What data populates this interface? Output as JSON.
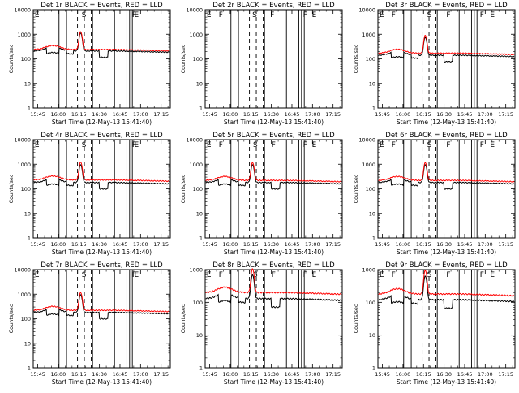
{
  "figure": {
    "title_template": "Det {n}r BLACK = Events, RED = LLD",
    "xlabel": "Start Time (12-May-13 15:41:40)",
    "ylabel": "Counts/sec",
    "series_colors": {
      "events": "#000000",
      "lld": "#ff0000"
    }
  },
  "chart_data": [
    {
      "detector": 1,
      "type": "line",
      "title": "Det 1r BLACK = Events, RED = LLD",
      "xlabel": "Start Time (12-May-13 15:41:40)",
      "ylabel": "Counts/sec",
      "x_tick_labels": [
        "15:45",
        "16:00",
        "16:15",
        "16:30",
        "16:45",
        "17:00",
        "17:15"
      ],
      "x_tick_minutes": [
        45,
        60,
        75,
        90,
        105,
        120,
        135
      ],
      "xlim_minutes": [
        41.7,
        141.7
      ],
      "y_tick_labels": [
        "1",
        "10",
        "100",
        "1000",
        "10000"
      ],
      "ylim": [
        1,
        10000
      ],
      "yscale": "log",
      "region_labels": [
        {
          "text": "E",
          "minute": 42.2
        },
        {
          "text": "S",
          "minute": 76.5
        },
        {
          "text": "F",
          "minute": 113.2
        },
        {
          "text": "E",
          "minute": 114.8
        }
      ],
      "solid_lines_minutes": [
        60.5,
        66.0,
        85.0,
        101.0,
        110.0,
        112.0,
        114.0
      ],
      "dashed_lines_minutes": [
        74.0,
        79.0,
        84.0
      ],
      "series": [
        {
          "name": "Events",
          "color": "#000000",
          "events_level": 210
        },
        {
          "name": "LLD",
          "color": "#ff0000",
          "lld_level": 240
        }
      ]
    },
    {
      "detector": 2,
      "type": "line",
      "title": "Det 2r BLACK = Events, RED = LLD",
      "xlabel": "Start Time (12-May-13 15:41:40)",
      "ylabel": "Counts/sec",
      "x_tick_labels": [
        "15:45",
        "16:00",
        "16:15",
        "16:30",
        "16:45",
        "17:00",
        "17:15"
      ],
      "x_tick_minutes": [
        45,
        60,
        75,
        90,
        105,
        120,
        135
      ],
      "xlim_minutes": [
        41.7,
        141.7
      ],
      "y_tick_labels": [
        "1",
        "10",
        "100",
        "1000",
        "10000"
      ],
      "ylim": [
        1,
        10000
      ],
      "yscale": "log",
      "region_labels": [
        {
          "text": "E",
          "minute": 42.2
        },
        {
          "text": "F",
          "minute": 51.0
        },
        {
          "text": "S",
          "minute": 75.5
        },
        {
          "text": "F",
          "minute": 88.5
        },
        {
          "text": "F",
          "minute": 112.5
        },
        {
          "text": "E",
          "minute": 119.0
        }
      ],
      "solid_lines_minutes": [
        60.5,
        66.0,
        85.0,
        101.0,
        110.0,
        112.0,
        114.0
      ],
      "dashed_lines_minutes": [
        74.0,
        79.0,
        84.0
      ],
      "series": [
        {
          "name": "Events",
          "color": "#000000",
          "events_level": null
        },
        {
          "name": "LLD",
          "color": "#ff0000",
          "lld_level": null
        }
      ]
    },
    {
      "detector": 3,
      "type": "line",
      "title": "Det 3r BLACK = Events, RED = LLD",
      "xlabel": "Start Time (12-May-13 15:41:40)",
      "ylabel": "Counts/sec",
      "x_tick_labels": [
        "15:45",
        "16:00",
        "16:15",
        "16:30",
        "16:45",
        "17:00",
        "17:15"
      ],
      "x_tick_minutes": [
        45,
        60,
        75,
        90,
        105,
        120,
        135
      ],
      "xlim_minutes": [
        41.7,
        141.7
      ],
      "y_tick_labels": [
        "1",
        "10",
        "100",
        "1000",
        "10000"
      ],
      "ylim": [
        1,
        10000
      ],
      "yscale": "log",
      "region_labels": [
        {
          "text": "E",
          "minute": 42.2
        },
        {
          "text": "F",
          "minute": 51.0
        },
        {
          "text": "S",
          "minute": 77.0
        },
        {
          "text": "F",
          "minute": 91.0
        },
        {
          "text": "F",
          "minute": 115.5
        },
        {
          "text": "E",
          "minute": 123.0
        }
      ],
      "solid_lines_minutes": [
        60.5,
        66.0,
        85.0,
        101.0,
        110.0,
        112.0,
        114.0
      ],
      "dashed_lines_minutes": [
        74.0,
        79.0,
        84.0
      ],
      "series": [
        {
          "name": "Events",
          "color": "#000000",
          "events_level": 140
        },
        {
          "name": "LLD",
          "color": "#ff0000",
          "lld_level": 170
        }
      ]
    },
    {
      "detector": 4,
      "type": "line",
      "title": "Det 4r BLACK = Events, RED = LLD",
      "xlabel": "Start Time (12-May-13 15:41:40)",
      "ylabel": "Counts/sec",
      "x_tick_labels": [
        "15:45",
        "16:00",
        "16:15",
        "16:30",
        "16:45",
        "17:00",
        "17:15"
      ],
      "x_tick_minutes": [
        45,
        60,
        75,
        90,
        105,
        120,
        135
      ],
      "xlim_minutes": [
        41.7,
        141.7
      ],
      "y_tick_labels": [
        "1",
        "10",
        "100",
        "1000",
        "10000"
      ],
      "ylim": [
        1,
        10000
      ],
      "yscale": "log",
      "region_labels": [
        {
          "text": "E",
          "minute": 42.2
        },
        {
          "text": "S",
          "minute": 76.5
        },
        {
          "text": "F",
          "minute": 113.2
        },
        {
          "text": "E",
          "minute": 114.8
        }
      ],
      "solid_lines_minutes": [
        60.5,
        66.0,
        85.0,
        101.0,
        110.0,
        112.0,
        114.0
      ],
      "dashed_lines_minutes": [
        74.0,
        79.0,
        84.0
      ],
      "series": [
        {
          "name": "Events",
          "color": "#000000",
          "events_level": 180
        },
        {
          "name": "LLD",
          "color": "#ff0000",
          "lld_level": 230
        }
      ]
    },
    {
      "detector": 5,
      "type": "line",
      "title": "Det 5r BLACK = Events, RED = LLD",
      "xlabel": "Start Time (12-May-13 15:41:40)",
      "ylabel": "Counts/sec",
      "x_tick_labels": [
        "15:45",
        "16:00",
        "16:15",
        "16:30",
        "16:45",
        "17:00",
        "17:15"
      ],
      "x_tick_minutes": [
        45,
        60,
        75,
        90,
        105,
        120,
        135
      ],
      "xlim_minutes": [
        41.7,
        141.7
      ],
      "y_tick_labels": [
        "1",
        "10",
        "100",
        "1000",
        "10000"
      ],
      "ylim": [
        1,
        10000
      ],
      "yscale": "log",
      "region_labels": [
        {
          "text": "E",
          "minute": 42.2
        },
        {
          "text": "F",
          "minute": 51.0
        },
        {
          "text": "S",
          "minute": 76.0
        },
        {
          "text": "F",
          "minute": 89.5
        },
        {
          "text": "F",
          "minute": 112.5
        },
        {
          "text": "E",
          "minute": 119.0
        }
      ],
      "solid_lines_minutes": [
        60.5,
        66.0,
        85.0,
        101.0,
        110.0,
        112.0,
        114.0
      ],
      "dashed_lines_minutes": [
        74.0,
        79.0,
        84.0
      ],
      "series": [
        {
          "name": "Events",
          "color": "#000000",
          "events_level": 180
        },
        {
          "name": "LLD",
          "color": "#ff0000",
          "lld_level": 220
        }
      ]
    },
    {
      "detector": 6,
      "type": "line",
      "title": "Det 6r BLACK = Events, RED = LLD",
      "xlabel": "Start Time (12-May-13 15:41:40)",
      "ylabel": "Counts/sec",
      "x_tick_labels": [
        "15:45",
        "16:00",
        "16:15",
        "16:30",
        "16:45",
        "17:00",
        "17:15"
      ],
      "x_tick_minutes": [
        45,
        60,
        75,
        90,
        105,
        120,
        135
      ],
      "xlim_minutes": [
        41.7,
        141.7
      ],
      "y_tick_labels": [
        "1",
        "10",
        "100",
        "1000",
        "10000"
      ],
      "ylim": [
        1,
        10000
      ],
      "yscale": "log",
      "region_labels": [
        {
          "text": "E",
          "minute": 42.2
        },
        {
          "text": "F",
          "minute": 51.0
        },
        {
          "text": "S",
          "minute": 77.0
        },
        {
          "text": "F",
          "minute": 91.0
        },
        {
          "text": "F",
          "minute": 115.5
        },
        {
          "text": "E",
          "minute": 123.0
        }
      ],
      "solid_lines_minutes": [
        60.5,
        66.0,
        85.0,
        101.0,
        110.0,
        112.0,
        114.0
      ],
      "dashed_lines_minutes": [
        74.0,
        79.0,
        84.0
      ],
      "series": [
        {
          "name": "Events",
          "color": "#000000",
          "events_level": 180
        },
        {
          "name": "LLD",
          "color": "#ff0000",
          "lld_level": 220
        }
      ]
    },
    {
      "detector": 7,
      "type": "line",
      "title": "Det 7r BLACK = Events, RED = LLD",
      "xlabel": "Start Time (12-May-13 15:41:40)",
      "ylabel": "Counts/sec",
      "x_tick_labels": [
        "15:45",
        "16:00",
        "16:15",
        "16:30",
        "16:45",
        "17:00",
        "17:15"
      ],
      "x_tick_minutes": [
        45,
        60,
        75,
        90,
        105,
        120,
        135
      ],
      "xlim_minutes": [
        41.7,
        141.7
      ],
      "y_tick_labels": [
        "1",
        "10",
        "100",
        "1000",
        "10000"
      ],
      "ylim": [
        1,
        10000
      ],
      "yscale": "log",
      "region_labels": [
        {
          "text": "E",
          "minute": 42.2
        },
        {
          "text": "S",
          "minute": 76.5
        },
        {
          "text": "F",
          "minute": 113.2
        },
        {
          "text": "E",
          "minute": 114.8
        }
      ],
      "solid_lines_minutes": [
        60.5,
        66.0,
        85.0,
        101.0,
        110.0,
        112.0,
        114.0
      ],
      "dashed_lines_minutes": [
        74.0,
        79.0,
        84.0
      ],
      "series": [
        {
          "name": "Events",
          "color": "#000000",
          "events_level": 180
        },
        {
          "name": "LLD",
          "color": "#ff0000",
          "lld_level": 220
        }
      ]
    },
    {
      "detector": 8,
      "type": "line",
      "title": "Det 8r BLACK = Events, RED = LLD",
      "xlabel": "Start Time (12-May-13 15:41:40)",
      "ylabel": "Counts/sec",
      "x_tick_labels": [
        "15:45",
        "16:00",
        "16:15",
        "16:30",
        "16:45",
        "17:00",
        "17:15"
      ],
      "x_tick_minutes": [
        45,
        60,
        75,
        90,
        105,
        120,
        135
      ],
      "xlim_minutes": [
        41.7,
        141.7
      ],
      "y_tick_labels": [
        "1",
        "10",
        "100",
        "1000"
      ],
      "ylim": [
        1,
        1000
      ],
      "yscale": "log",
      "region_labels": [
        {
          "text": "E",
          "minute": 42.2
        },
        {
          "text": "F",
          "minute": 51.0
        },
        {
          "text": "S",
          "minute": 76.0
        },
        {
          "text": "F",
          "minute": 89.5
        },
        {
          "text": "F",
          "minute": 112.5
        },
        {
          "text": "E",
          "minute": 119.0
        }
      ],
      "solid_lines_minutes": [
        60.5,
        66.0,
        85.0,
        101.0,
        110.0,
        112.0,
        114.0
      ],
      "dashed_lines_minutes": [
        74.0,
        79.0,
        84.0
      ],
      "series": [
        {
          "name": "Events",
          "color": "#000000",
          "events_level": 130
        },
        {
          "name": "LLD",
          "color": "#ff0000",
          "lld_level": 200
        }
      ]
    },
    {
      "detector": 9,
      "type": "line",
      "title": "Det 9r BLACK = Events, RED = LLD",
      "xlabel": "Start Time (12-May-13 15:41:40)",
      "ylabel": "Counts/sec",
      "x_tick_labels": [
        "15:45",
        "16:00",
        "16:15",
        "16:30",
        "16:45",
        "17:00",
        "17:15"
      ],
      "x_tick_minutes": [
        45,
        60,
        75,
        90,
        105,
        120,
        135
      ],
      "xlim_minutes": [
        41.7,
        141.7
      ],
      "y_tick_labels": [
        "1",
        "10",
        "100",
        "1000"
      ],
      "ylim": [
        1,
        1000
      ],
      "yscale": "log",
      "region_labels": [
        {
          "text": "E",
          "minute": 42.2
        },
        {
          "text": "F",
          "minute": 51.0
        },
        {
          "text": "S",
          "minute": 77.0
        },
        {
          "text": "F",
          "minute": 91.0
        },
        {
          "text": "F",
          "minute": 115.5
        },
        {
          "text": "E",
          "minute": 123.0
        }
      ],
      "solid_lines_minutes": [
        60.5,
        66.0,
        85.0,
        101.0,
        110.0,
        112.0,
        114.0
      ],
      "dashed_lines_minutes": [
        74.0,
        79.0,
        84.0
      ],
      "series": [
        {
          "name": "Events",
          "color": "#000000",
          "events_level": 120
        },
        {
          "name": "LLD",
          "color": "#ff0000",
          "lld_level": 180
        }
      ]
    }
  ]
}
